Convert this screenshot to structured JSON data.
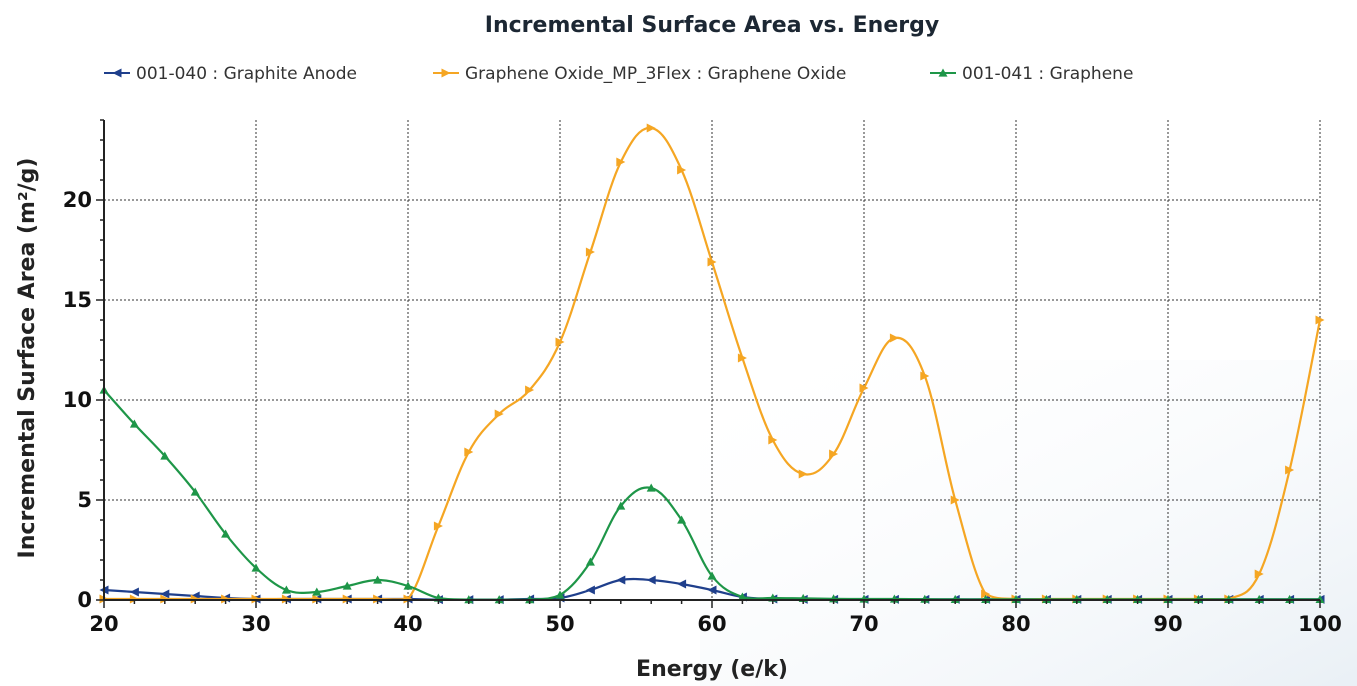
{
  "chart_data": {
    "type": "line",
    "title": "Incremental Surface Area vs. Energy",
    "xlabel": "Energy (e/k)",
    "ylabel": "Incremental Surface Area (m²/g)",
    "xlim": [
      20,
      100
    ],
    "ylim": [
      0,
      24
    ],
    "xticks": [
      20,
      30,
      40,
      50,
      60,
      70,
      80,
      90,
      100
    ],
    "yticks": [
      0,
      5,
      10,
      15,
      20
    ],
    "grid": "dotted, at major ticks",
    "legend_position": "top",
    "series": [
      {
        "name": "001-040 : Graphite Anode",
        "color": "#1f3f8c",
        "marker": "left-triangle",
        "x": [
          20,
          22,
          24,
          26,
          28,
          30,
          32,
          34,
          36,
          38,
          40,
          42,
          44,
          46,
          48,
          50,
          52,
          54,
          56,
          58,
          60,
          62,
          64,
          66,
          68,
          70,
          72,
          74,
          76,
          78,
          80,
          82,
          84,
          86,
          88,
          90,
          92,
          94,
          96,
          98,
          100
        ],
        "values": [
          0.5,
          0.4,
          0.3,
          0.2,
          0.1,
          0.05,
          0.05,
          0.05,
          0.05,
          0.05,
          0.05,
          0.02,
          0.02,
          0.02,
          0.05,
          0.1,
          0.5,
          1.0,
          1.0,
          0.8,
          0.5,
          0.15,
          0.05,
          0.03,
          0.03,
          0.03,
          0.03,
          0.03,
          0.03,
          0.03,
          0.03,
          0.03,
          0.03,
          0.03,
          0.03,
          0.03,
          0.03,
          0.03,
          0.03,
          0.03,
          0.03
        ]
      },
      {
        "name": "Graphene Oxide_MP_3Flex : Graphene Oxide",
        "color": "#f5a623",
        "marker": "right-triangle",
        "x": [
          20,
          22,
          24,
          26,
          28,
          30,
          32,
          34,
          36,
          38,
          40,
          42,
          44,
          46,
          48,
          50,
          52,
          54,
          56,
          58,
          60,
          62,
          64,
          66,
          68,
          70,
          72,
          74,
          76,
          78,
          80,
          82,
          84,
          86,
          88,
          90,
          92,
          94,
          96,
          98,
          100
        ],
        "values": [
          0.05,
          0.05,
          0.05,
          0.05,
          0.05,
          0.05,
          0.05,
          0.05,
          0.05,
          0.05,
          0.05,
          3.7,
          7.4,
          9.3,
          10.5,
          12.9,
          17.4,
          21.9,
          23.6,
          21.5,
          16.9,
          12.1,
          8.0,
          6.3,
          7.3,
          10.6,
          13.1,
          11.2,
          5.0,
          0.3,
          0.05,
          0.05,
          0.05,
          0.05,
          0.05,
          0.05,
          0.05,
          0.05,
          1.3,
          6.5,
          14.0
        ]
      },
      {
        "name": "001-041 : Graphene",
        "color": "#1e9648",
        "marker": "up-triangle",
        "x": [
          20,
          22,
          24,
          26,
          28,
          30,
          32,
          34,
          36,
          38,
          40,
          42,
          44,
          46,
          48,
          50,
          52,
          54,
          56,
          58,
          60,
          62,
          64,
          66,
          68,
          70,
          72,
          74,
          76,
          78,
          80,
          82,
          84,
          86,
          88,
          90,
          92,
          94,
          96,
          98,
          100
        ],
        "values": [
          10.5,
          8.8,
          7.2,
          5.4,
          3.3,
          1.6,
          0.5,
          0.4,
          0.7,
          1.0,
          0.7,
          0.1,
          0.02,
          0.02,
          0.02,
          0.25,
          1.9,
          4.7,
          5.6,
          4.0,
          1.2,
          0.15,
          0.1,
          0.08,
          0.06,
          0.05,
          0.05,
          0.04,
          0.03,
          0.03,
          0.03,
          0.03,
          0.03,
          0.03,
          0.03,
          0.03,
          0.03,
          0.03,
          0.03,
          0.03,
          0.03
        ]
      }
    ]
  }
}
